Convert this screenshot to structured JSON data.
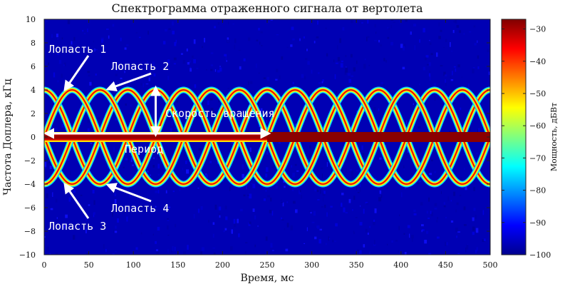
{
  "chart_data": {
    "type": "heatmap",
    "title": "Спектрограмма отраженного сигнала от вертолета",
    "xlabel": "Время, мс",
    "ylabel": "Частота Доплера, кГц",
    "xlim": [
      0,
      500
    ],
    "ylim": [
      -10,
      10
    ],
    "xticks": [
      "0",
      "50",
      "100",
      "150",
      "200",
      "250",
      "300",
      "350",
      "400",
      "450",
      "500"
    ],
    "yticks": [
      "10",
      "8",
      "6",
      "4",
      "2",
      "0",
      "−2",
      "−4",
      "−6",
      "−8",
      "−10"
    ],
    "colorbar": {
      "label": "Мощность, дБВт",
      "range": [
        -100,
        -27
      ],
      "ticks": [
        "−30",
        "−40",
        "−50",
        "−60",
        "−70",
        "−80",
        "−90",
        "−100"
      ],
      "colormap": "jet"
    },
    "signal": {
      "amplitude_khz": 4,
      "period_ms": 125,
      "blade_count": 4,
      "blade_phases_deg": [
        0,
        90,
        180,
        270
      ],
      "body_line_khz": 0,
      "body_power_db": -30,
      "blade_power_db": -45,
      "noise_floor_db": -95
    },
    "annotations": [
      {
        "id": "blade1",
        "text": "Лопасть 1",
        "arrow_to": {
          "t": 20,
          "f": 3.9
        }
      },
      {
        "id": "blade2",
        "text": "Лопасть 2",
        "arrow_to": {
          "t": 68,
          "f": 4.0
        }
      },
      {
        "id": "blade3",
        "text": "Лопасть 3",
        "arrow_to": {
          "t": 20,
          "f": -3.9
        }
      },
      {
        "id": "blade4",
        "text": "Лопасть 4",
        "arrow_to": {
          "t": 68,
          "f": -4.0
        }
      },
      {
        "id": "speed",
        "text": "Скорость вращения",
        "double_arrow": {
          "t": 125,
          "f1": 4.2,
          "f2": 0
        }
      },
      {
        "id": "period",
        "text": "Период",
        "double_arrow": {
          "t1": 0,
          "t2": 252,
          "f": 0.3
        }
      }
    ],
    "colors": {
      "arrow": "#ffffff",
      "background_noise": "#0000b4"
    }
  }
}
